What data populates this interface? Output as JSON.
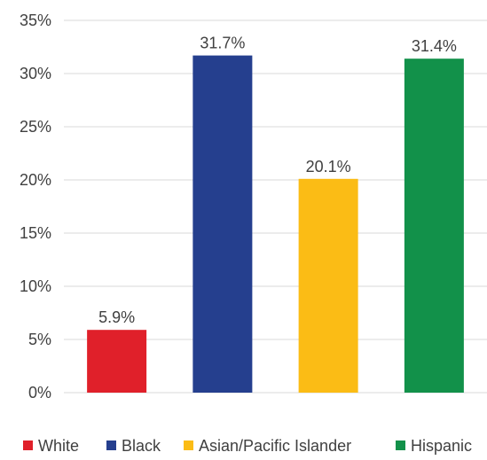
{
  "chart_data": {
    "type": "bar",
    "title": "",
    "xlabel": "",
    "ylabel": "",
    "categories": [
      "White",
      "Black",
      "Asian/Pacific Islander",
      "Hispanic"
    ],
    "values": [
      5.9,
      31.7,
      20.1,
      31.4
    ],
    "data_labels": [
      "5.9%",
      "31.7%",
      "20.1%",
      "31.4%"
    ],
    "colors": [
      "#e0202a",
      "#253f8e",
      "#fbbc15",
      "#12914a"
    ],
    "ylim": [
      0,
      35
    ],
    "yticks": [
      0,
      5,
      10,
      15,
      20,
      25,
      30,
      35
    ],
    "ytick_labels": [
      "0%",
      "5%",
      "10%",
      "15%",
      "20%",
      "25%",
      "30%",
      "35%"
    ],
    "grid": true,
    "legend_position": "bottom",
    "legend": [
      "White",
      "Black",
      "Asian/Pacific Islander",
      "Hispanic"
    ]
  }
}
